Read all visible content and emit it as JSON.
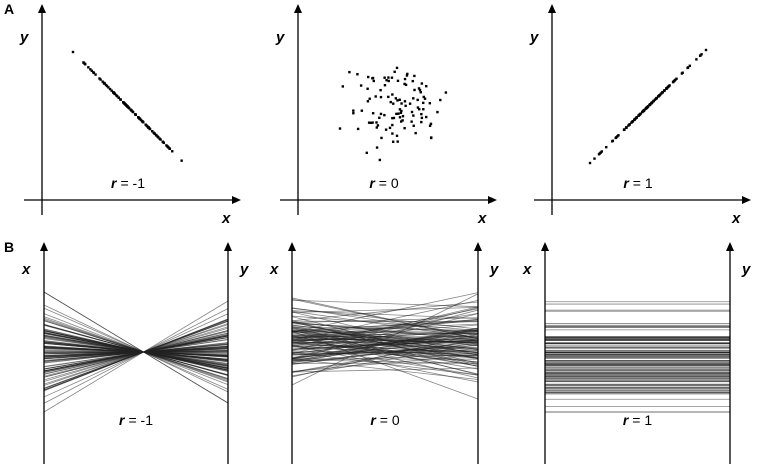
{
  "rows": [
    {
      "label": "A",
      "plots": [
        {
          "y_label": "y",
          "x_label": "x",
          "r_symbol": "r",
          "r_value": "= -1"
        },
        {
          "y_label": "y",
          "x_label": "x",
          "r_symbol": "r",
          "r_value": "= 0"
        },
        {
          "y_label": "y",
          "x_label": "x",
          "r_symbol": "r",
          "r_value": "= 1"
        }
      ]
    },
    {
      "label": "B",
      "plots": [
        {
          "left_label": "x",
          "right_label": "y",
          "r_symbol": "r",
          "r_value": "= -1"
        },
        {
          "left_label": "x",
          "right_label": "y",
          "r_symbol": "r",
          "r_value": "= 0"
        },
        {
          "left_label": "x",
          "right_label": "y",
          "r_symbol": "r",
          "r_value": "= 1"
        }
      ]
    }
  ]
}
